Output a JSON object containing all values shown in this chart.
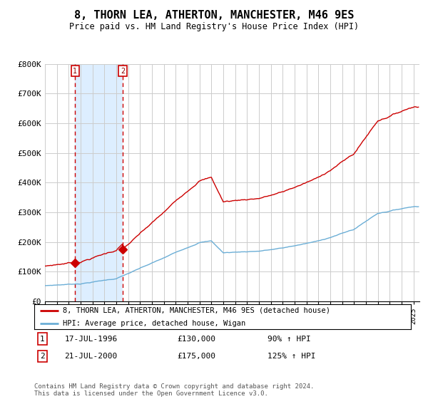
{
  "title": "8, THORN LEA, ATHERTON, MANCHESTER, M46 9ES",
  "subtitle": "Price paid vs. HM Land Registry's House Price Index (HPI)",
  "ylim": [
    0,
    800000
  ],
  "yticks": [
    0,
    100000,
    200000,
    300000,
    400000,
    500000,
    600000,
    700000,
    800000
  ],
  "ytick_labels": [
    "£0",
    "£100K",
    "£200K",
    "£300K",
    "£400K",
    "£500K",
    "£600K",
    "£700K",
    "£800K"
  ],
  "legend_line1": "8, THORN LEA, ATHERTON, MANCHESTER, M46 9ES (detached house)",
  "legend_line2": "HPI: Average price, detached house, Wigan",
  "sale1_date": "17-JUL-1996",
  "sale1_price": "£130,000",
  "sale1_hpi": "90% ↑ HPI",
  "sale1_year": 1996.54,
  "sale1_value": 130000,
  "sale2_date": "21-JUL-2000",
  "sale2_price": "£175,000",
  "sale2_hpi": "125% ↑ HPI",
  "sale2_year": 2000.54,
  "sale2_value": 175000,
  "footer": "Contains HM Land Registry data © Crown copyright and database right 2024.\nThis data is licensed under the Open Government Licence v3.0.",
  "hpi_color": "#6baed6",
  "price_color": "#cc0000",
  "bg_shade_color": "#ddeeff",
  "grid_color": "#cccccc"
}
